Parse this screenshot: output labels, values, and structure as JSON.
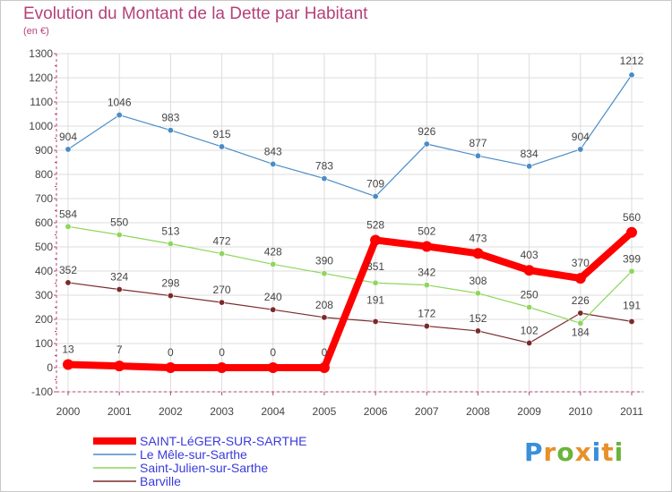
{
  "title": "Evolution du Montant de la Dette par Habitant",
  "subtitle": "(en €)",
  "logo": {
    "letters": [
      "P",
      "r",
      "o",
      "x",
      "i",
      "t",
      "i"
    ],
    "colors": [
      "#3a8fd9",
      "#e8902a",
      "#6ab43a",
      "#e8902a",
      "#3a8fd9",
      "#e8902a",
      "#6ab43a"
    ]
  },
  "chart_data": {
    "type": "line",
    "x": [
      "2000",
      "2001",
      "2002",
      "2003",
      "2004",
      "2005",
      "2006",
      "2007",
      "2008",
      "2009",
      "2010",
      "2011"
    ],
    "ylim": [
      -100,
      1300
    ],
    "yticks": [
      "-100",
      "0",
      "100",
      "200",
      "300",
      "400",
      "500",
      "600",
      "700",
      "800",
      "900",
      "1000",
      "1100",
      "1200",
      "1300"
    ],
    "grid": true,
    "legend_position": "bottom-left",
    "series": [
      {
        "name": "SAINT-LéGER-SUR-SARTHE",
        "color": "#ff0000",
        "values": [
          13,
          7,
          0,
          0,
          0,
          0,
          528,
          502,
          473,
          403,
          370,
          560
        ],
        "labels": [
          "13",
          "7",
          "0",
          "0",
          "0",
          "0",
          "528",
          "502",
          "473",
          "403",
          "370",
          "560"
        ]
      },
      {
        "name": "Le Mêle-sur-Sarthe",
        "color": "#4a8cc6",
        "values": [
          904,
          1046,
          983,
          915,
          843,
          783,
          709,
          926,
          877,
          834,
          904,
          1212
        ],
        "labels": [
          "904",
          "1046",
          "983",
          "915",
          "843",
          "783",
          "709",
          "926",
          "877",
          "834",
          "904",
          "1212"
        ]
      },
      {
        "name": "Saint-Julien-sur-Sarthe",
        "color": "#8ed65c",
        "values": [
          584,
          550,
          513,
          472,
          428,
          390,
          351,
          342,
          308,
          250,
          184,
          399
        ],
        "labels": [
          "584",
          "550",
          "513",
          "472",
          "428",
          "390",
          "351",
          "342",
          "308",
          "250",
          "184",
          "399"
        ]
      },
      {
        "name": "Barville",
        "color": "#7a2a2a",
        "values": [
          352,
          324,
          298,
          270,
          240,
          208,
          191,
          172,
          152,
          102,
          226,
          191
        ],
        "labels": [
          "352",
          "324",
          "298",
          "270",
          "240",
          "208",
          "191",
          "172",
          "152",
          "102",
          "226",
          "191"
        ]
      }
    ]
  }
}
